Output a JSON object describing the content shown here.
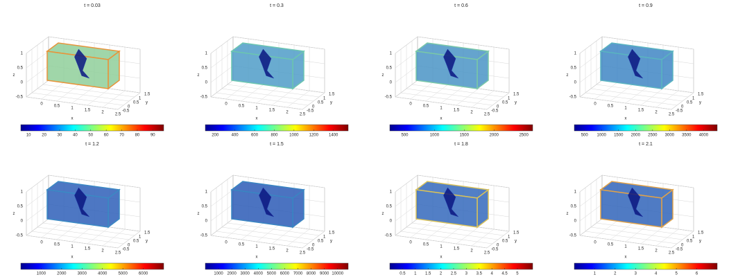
{
  "chart_data": [
    {
      "type": "box3d",
      "title": "t = 0.03",
      "xlabel": "x",
      "ylabel": "y",
      "zlabel": "z",
      "xlim": [
        -0.5,
        2.5
      ],
      "ylim": [
        -0.5,
        1.5
      ],
      "zlim": [
        -0.5,
        1
      ],
      "xticks": [
        0,
        0.5,
        1,
        1.5,
        2,
        2.5
      ],
      "yticks": [
        -0.5,
        0,
        0.5,
        1,
        1.5
      ],
      "zticks": [
        -0.5,
        0,
        0.5,
        1
      ],
      "face_color": "#8fcf9a",
      "edge_color": "#e8943a",
      "clim": [
        5,
        97
      ],
      "cticks": [
        10,
        20,
        30,
        40,
        50,
        60,
        70,
        80,
        90
      ]
    },
    {
      "type": "box3d",
      "title": "t = 0.3",
      "xlabel": "x",
      "ylabel": "y",
      "zlabel": "z",
      "xlim": [
        -0.5,
        2.5
      ],
      "ylim": [
        -0.5,
        1.5
      ],
      "zlim": [
        -0.5,
        1
      ],
      "xticks": [
        0,
        0.5,
        1,
        1.5,
        2,
        2.5
      ],
      "yticks": [
        -0.5,
        0,
        0.5,
        1,
        1.5
      ],
      "zticks": [
        -0.5,
        0,
        0.5,
        1
      ],
      "face_color": "#4f9cc8",
      "edge_color": "#6cc6b0",
      "clim": [
        100,
        1550
      ],
      "cticks": [
        200,
        400,
        600,
        800,
        1000,
        1200,
        1400
      ]
    },
    {
      "type": "box3d",
      "title": "t = 0.6",
      "xlabel": "x",
      "ylabel": "y",
      "zlabel": "z",
      "xlim": [
        -0.5,
        2.5
      ],
      "ylim": [
        -0.5,
        1.5
      ],
      "zlim": [
        -0.5,
        1
      ],
      "xticks": [
        0,
        0.5,
        1,
        1.5,
        2,
        2.5
      ],
      "yticks": [
        -0.5,
        0,
        0.5,
        1,
        1.5
      ],
      "zticks": [
        -0.5,
        0,
        0.5,
        1
      ],
      "face_color": "#4a94c6",
      "edge_color": "#7ac8a8",
      "clim": [
        250,
        2650
      ],
      "cticks": [
        500,
        1000,
        1500,
        2000,
        2500
      ]
    },
    {
      "type": "box3d",
      "title": "t = 0.9",
      "xlabel": "x",
      "ylabel": "y",
      "zlabel": "z",
      "xlim": [
        -0.5,
        2.5
      ],
      "ylim": [
        -0.5,
        1.5
      ],
      "zlim": [
        -0.5,
        1
      ],
      "xticks": [
        0,
        0.5,
        1,
        1.5,
        2,
        2.5
      ],
      "yticks": [
        -0.5,
        0,
        0.5,
        1,
        1.5
      ],
      "zticks": [
        -0.5,
        0,
        0.5,
        1
      ],
      "face_color": "#3f86c4",
      "edge_color": "#5ab4c0",
      "clim": [
        200,
        4400
      ],
      "cticks": [
        500,
        1000,
        1500,
        2000,
        2500,
        3000,
        3500,
        4000
      ]
    },
    {
      "type": "box3d",
      "title": "t = 1.2",
      "xlabel": "x",
      "ylabel": "y",
      "zlabel": "z",
      "xlim": [
        -0.5,
        2.5
      ],
      "ylim": [
        -0.5,
        1.5
      ],
      "zlim": [
        -0.5,
        1
      ],
      "xticks": [
        0,
        0.5,
        1,
        1.5,
        2,
        2.5
      ],
      "yticks": [
        -0.5,
        0,
        0.5,
        1,
        1.5
      ],
      "zticks": [
        -0.5,
        0,
        0.5,
        1
      ],
      "face_color": "#2e5fb8",
      "edge_color": "#3c8ac4",
      "clim": [
        0,
        7000
      ],
      "cticks": [
        1000,
        2000,
        3000,
        4000,
        5000,
        6000
      ]
    },
    {
      "type": "box3d",
      "title": "t = 1.5",
      "xlabel": "x",
      "ylabel": "y",
      "zlabel": "z",
      "xlim": [
        -0.5,
        2.5
      ],
      "ylim": [
        -0.5,
        1.5
      ],
      "zlim": [
        -0.5,
        1
      ],
      "xticks": [
        0,
        0.5,
        1,
        1.5,
        2,
        2.5
      ],
      "yticks": [
        -0.5,
        0,
        0.5,
        1,
        1.5
      ],
      "zticks": [
        -0.5,
        0,
        0.5,
        1
      ],
      "face_color": "#2c5ab6",
      "edge_color": "#3a86c2",
      "clim": [
        0,
        10800
      ],
      "cticks": [
        1000,
        2000,
        3000,
        4000,
        5000,
        6000,
        7000,
        8000,
        9000,
        10000
      ]
    },
    {
      "type": "box3d",
      "title": "t = 1.8",
      "xlabel": "x",
      "ylabel": "y",
      "zlabel": "z",
      "xlim": [
        -0.5,
        2.5
      ],
      "ylim": [
        -0.5,
        1.5
      ],
      "zlim": [
        -0.5,
        1
      ],
      "xticks": [
        0,
        0.5,
        1,
        1.5,
        2,
        2.5
      ],
      "yticks": [
        -0.5,
        0,
        0.5,
        1,
        1.5
      ],
      "zticks": [
        -0.5,
        0,
        0.5,
        1
      ],
      "face_color": "#3468bc",
      "edge_color": "#d9c25a",
      "clim": [
        0,
        5.6
      ],
      "cticks": [
        0.5,
        1,
        1.5,
        2,
        2.5,
        3,
        3.5,
        4,
        4.5,
        5
      ]
    },
    {
      "type": "box3d",
      "title": "t = 2.1",
      "xlabel": "x",
      "ylabel": "y",
      "zlabel": "z",
      "xlim": [
        -0.5,
        2.5
      ],
      "ylim": [
        -0.5,
        1.5
      ],
      "zlim": [
        -0.5,
        1
      ],
      "xticks": [
        0,
        0.5,
        1,
        1.5,
        2,
        2.5
      ],
      "yticks": [
        -0.5,
        0,
        0.5,
        1,
        1.5
      ],
      "zticks": [
        -0.5,
        0,
        0.5,
        1
      ],
      "face_color": "#3064ba",
      "edge_color": "#e0a24a",
      "clim": [
        0,
        7
      ],
      "cticks": [
        1,
        2,
        3,
        4,
        5,
        6
      ]
    }
  ]
}
